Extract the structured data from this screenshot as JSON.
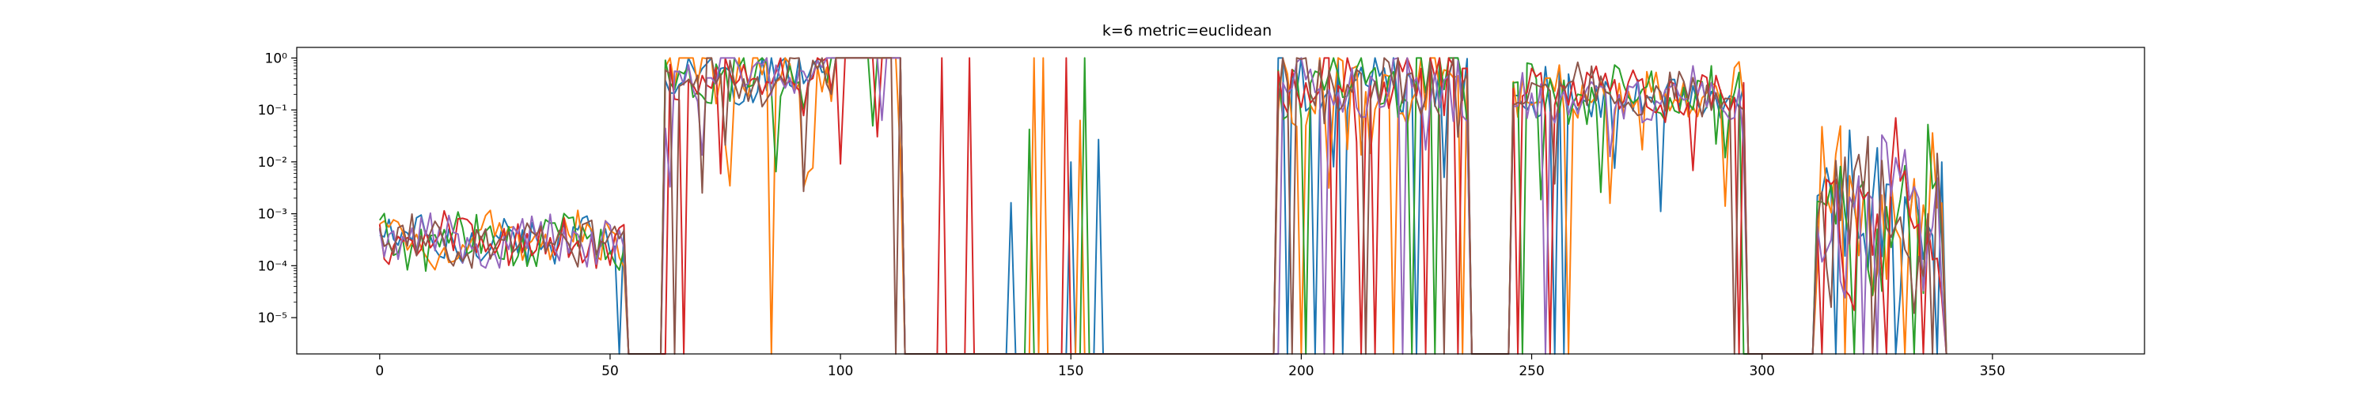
{
  "chart_data": {
    "type": "line",
    "title": "k=6 metric=euclidean",
    "xlabel": "",
    "ylabel": "",
    "xlim": [
      -18,
      383
    ],
    "ylim": [
      2e-06,
      1.6
    ],
    "yscale": "log",
    "grid": false,
    "x_ticks": [
      0,
      50,
      100,
      150,
      200,
      250,
      300,
      350
    ],
    "x_tick_labels": [
      "0",
      "50",
      "100",
      "150",
      "200",
      "250",
      "300",
      "350"
    ],
    "y_ticks": [
      1e-05,
      0.0001,
      0.001,
      0.01,
      0.1,
      1
    ],
    "y_tick_labels": [
      "10⁻⁵",
      "10⁻⁴",
      "10⁻³",
      "10⁻²",
      "10⁻¹",
      "10⁰"
    ],
    "segments": [
      {
        "x_start": 0,
        "x_end": 53,
        "level": 0.0003,
        "band": 0.45
      },
      {
        "x_start": 62,
        "x_end": 113,
        "level": 0.5,
        "band": 0.5
      },
      {
        "x_start": 195,
        "x_end": 236,
        "level": 0.35,
        "band": 0.65
      },
      {
        "x_start": 246,
        "x_end": 296,
        "level": 0.2,
        "band": 0.45
      },
      {
        "x_start": 312,
        "x_end": 339,
        "level": 0.001,
        "band": 1.4
      }
    ],
    "series": [
      {
        "color": "#1f77b4",
        "spikes": [
          52,
          137,
          150,
          156,
          197,
          203,
          209,
          225,
          255,
          257,
          316,
          329,
          338
        ]
      },
      {
        "color": "#ff7f0e",
        "spikes": [
          85,
          142,
          144,
          152,
          200,
          220,
          235,
          258,
          318,
          331
        ]
      },
      {
        "color": "#2ca02c",
        "spikes": [
          141,
          153,
          201,
          224,
          229,
          248,
          296,
          320,
          333
        ]
      },
      {
        "color": "#d62728",
        "spikes": [
          62,
          66,
          122,
          128,
          149,
          207,
          213,
          216,
          227,
          234,
          247,
          254,
          295,
          313,
          327,
          335
        ]
      },
      {
        "color": "#9467bd",
        "spikes": [
          195,
          205,
          222,
          253,
          322,
          325
        ]
      },
      {
        "color": "#8c564b",
        "spikes": [
          64,
          112,
          198,
          214,
          231,
          294,
          324,
          337
        ]
      }
    ]
  }
}
